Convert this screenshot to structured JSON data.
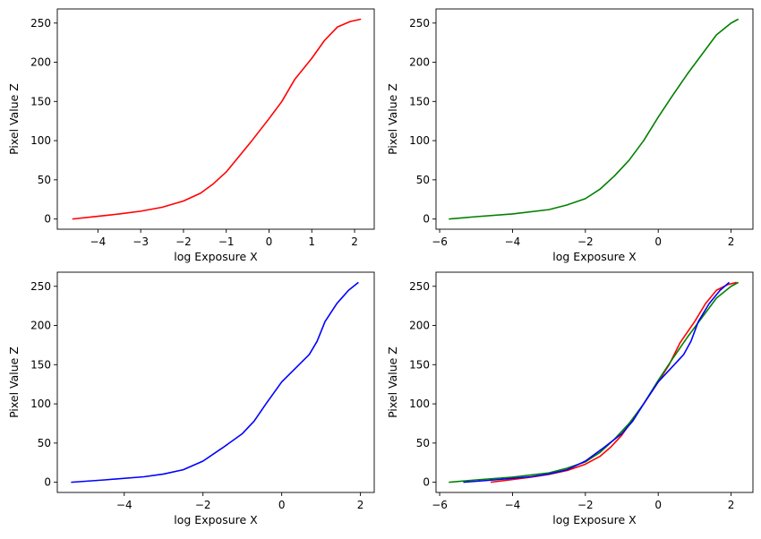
{
  "chart_data": [
    {
      "type": "line",
      "xlabel": "log Exposure X",
      "ylabel": "Pixel Value Z",
      "xlim": [
        -4.95,
        2.46
      ],
      "ylim": [
        -13,
        268
      ],
      "xticks": [
        -4,
        -3,
        -2,
        -1,
        0,
        1,
        2
      ],
      "yticks": [
        0,
        50,
        100,
        150,
        200,
        250
      ],
      "grid": false,
      "series": [
        {
          "color": "#ff0000",
          "points": [
            [
              -4.6,
              0
            ],
            [
              -4.0,
              3.5
            ],
            [
              -3.5,
              6.5
            ],
            [
              -3.0,
              10
            ],
            [
              -2.5,
              15
            ],
            [
              -2.0,
              23
            ],
            [
              -1.6,
              33
            ],
            [
              -1.3,
              45
            ],
            [
              -1.0,
              60
            ],
            [
              -0.7,
              80
            ],
            [
              -0.4,
              100
            ],
            [
              0.0,
              128
            ],
            [
              0.3,
              150
            ],
            [
              0.6,
              178
            ],
            [
              1.0,
              205
            ],
            [
              1.3,
              228
            ],
            [
              1.6,
              245
            ],
            [
              1.9,
              252
            ],
            [
              2.15,
              255
            ]
          ]
        }
      ]
    },
    {
      "type": "line",
      "xlabel": "log Exposure X",
      "ylabel": "Pixel Value Z",
      "xlim": [
        -6.1,
        2.6
      ],
      "ylim": [
        -13,
        268
      ],
      "xticks": [
        -6,
        -4,
        -2,
        0,
        2
      ],
      "yticks": [
        0,
        50,
        100,
        150,
        200,
        250
      ],
      "grid": false,
      "series": [
        {
          "color": "#008000",
          "points": [
            [
              -5.75,
              0
            ],
            [
              -5.0,
              3
            ],
            [
              -4.0,
              6.5
            ],
            [
              -3.0,
              12
            ],
            [
              -2.5,
              18
            ],
            [
              -2.0,
              26
            ],
            [
              -1.6,
              38
            ],
            [
              -1.2,
              55
            ],
            [
              -0.8,
              75
            ],
            [
              -0.4,
              100
            ],
            [
              0.0,
              130
            ],
            [
              0.4,
              158
            ],
            [
              0.8,
              185
            ],
            [
              1.2,
              210
            ],
            [
              1.6,
              235
            ],
            [
              2.0,
              250
            ],
            [
              2.2,
              255
            ]
          ]
        }
      ]
    },
    {
      "type": "line",
      "xlabel": "log Exposure X",
      "ylabel": "Pixel Value Z",
      "xlim": [
        -5.7,
        2.35
      ],
      "ylim": [
        -13,
        268
      ],
      "xticks": [
        -4,
        -2,
        0,
        2
      ],
      "yticks": [
        0,
        50,
        100,
        150,
        200,
        250
      ],
      "grid": false,
      "series": [
        {
          "color": "#0000ff",
          "points": [
            [
              -5.35,
              0
            ],
            [
              -4.5,
              3
            ],
            [
              -3.5,
              7
            ],
            [
              -3.0,
              10.5
            ],
            [
              -2.5,
              16
            ],
            [
              -2.0,
              27
            ],
            [
              -1.5,
              44
            ],
            [
              -1.0,
              62
            ],
            [
              -0.7,
              78
            ],
            [
              -0.4,
              100
            ],
            [
              0.0,
              128
            ],
            [
              0.4,
              148
            ],
            [
              0.7,
              163
            ],
            [
              0.9,
              180
            ],
            [
              1.1,
              205
            ],
            [
              1.4,
              228
            ],
            [
              1.7,
              245
            ],
            [
              1.95,
              255
            ]
          ]
        }
      ]
    },
    {
      "type": "line",
      "xlabel": "log Exposure X",
      "ylabel": "Pixel Value Z",
      "xlim": [
        -6.1,
        2.6
      ],
      "ylim": [
        -13,
        268
      ],
      "xticks": [
        -6,
        -4,
        -2,
        0,
        2
      ],
      "yticks": [
        0,
        50,
        100,
        150,
        200,
        250
      ],
      "grid": false,
      "series": [
        {
          "color": "#ff0000",
          "points": [
            [
              -4.6,
              0
            ],
            [
              -4.0,
              3.5
            ],
            [
              -3.5,
              6.5
            ],
            [
              -3.0,
              10
            ],
            [
              -2.5,
              15
            ],
            [
              -2.0,
              23
            ],
            [
              -1.6,
              33
            ],
            [
              -1.3,
              45
            ],
            [
              -1.0,
              60
            ],
            [
              -0.7,
              80
            ],
            [
              -0.4,
              100
            ],
            [
              0.0,
              128
            ],
            [
              0.3,
              150
            ],
            [
              0.6,
              178
            ],
            [
              1.0,
              205
            ],
            [
              1.3,
              228
            ],
            [
              1.6,
              245
            ],
            [
              1.9,
              252
            ],
            [
              2.15,
              255
            ]
          ]
        },
        {
          "color": "#008000",
          "points": [
            [
              -5.75,
              0
            ],
            [
              -5.0,
              3
            ],
            [
              -4.0,
              6.5
            ],
            [
              -3.0,
              12
            ],
            [
              -2.5,
              18
            ],
            [
              -2.0,
              26
            ],
            [
              -1.6,
              38
            ],
            [
              -1.2,
              55
            ],
            [
              -0.8,
              75
            ],
            [
              -0.4,
              100
            ],
            [
              0.0,
              130
            ],
            [
              0.4,
              158
            ],
            [
              0.8,
              185
            ],
            [
              1.2,
              210
            ],
            [
              1.6,
              235
            ],
            [
              2.0,
              250
            ],
            [
              2.2,
              255
            ]
          ]
        },
        {
          "color": "#0000ff",
          "points": [
            [
              -5.35,
              0
            ],
            [
              -4.5,
              3
            ],
            [
              -3.5,
              7
            ],
            [
              -3.0,
              10.5
            ],
            [
              -2.5,
              16
            ],
            [
              -2.0,
              27
            ],
            [
              -1.5,
              44
            ],
            [
              -1.0,
              62
            ],
            [
              -0.7,
              78
            ],
            [
              -0.4,
              100
            ],
            [
              0.0,
              128
            ],
            [
              0.4,
              148
            ],
            [
              0.7,
              163
            ],
            [
              0.9,
              180
            ],
            [
              1.1,
              205
            ],
            [
              1.4,
              228
            ],
            [
              1.7,
              245
            ],
            [
              1.95,
              255
            ]
          ]
        }
      ]
    }
  ]
}
